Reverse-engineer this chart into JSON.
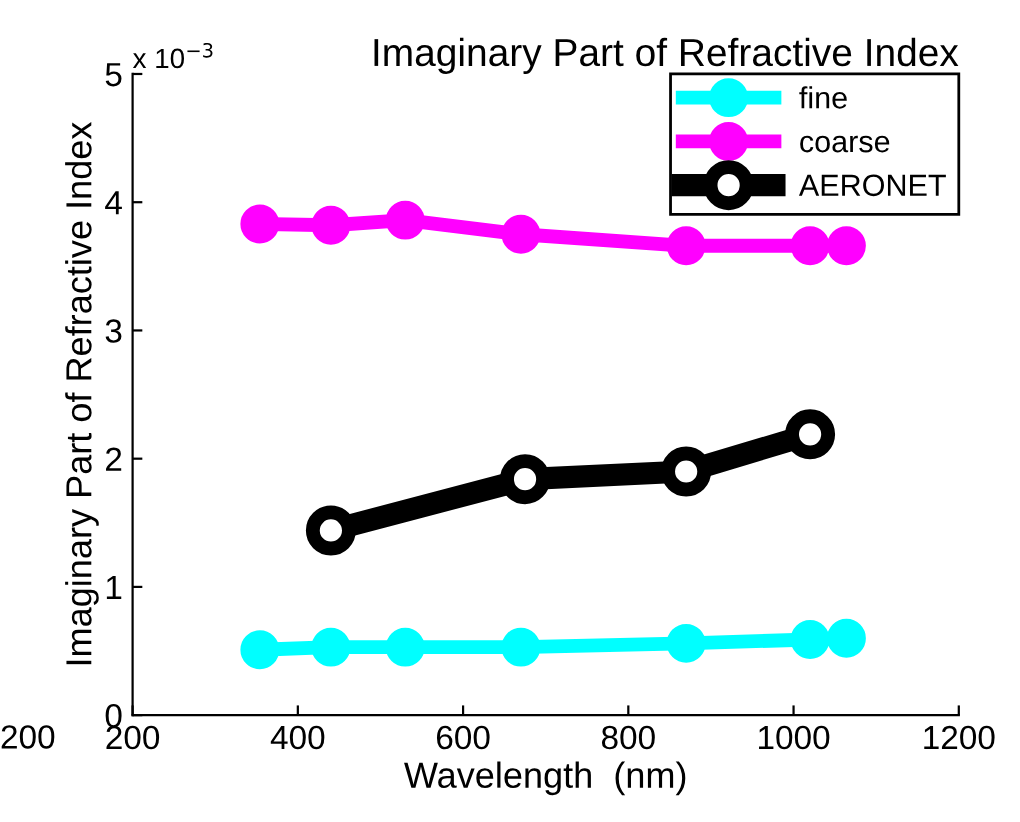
{
  "chart_data": {
    "type": "line",
    "title": "Imaginary Part of Refractive Index",
    "xlabel": "Wavelength  (nm)",
    "ylabel": "Imaginary Part of Refractive Index",
    "annotations": [
      "x 10$^{−3}$",
      "200"
    ],
    "x": [
      354,
      440,
      530,
      670,
      870,
      1020,
      1064
    ],
    "series": [
      {
        "name": "fine",
        "color": "#00ffff",
        "values": [
          0.51,
          0.53,
          0.53,
          0.53,
          0.56,
          0.59,
          0.6
        ]
      },
      {
        "name": "coarse",
        "color": "#ff00ff",
        "values": [
          3.83,
          3.82,
          3.86,
          3.75,
          3.66,
          3.66,
          3.66
        ]
      },
      {
        "name": "AERONET",
        "color": "#000000",
        "x": [
          440,
          675,
          870,
          1020
        ],
        "values": [
          1.44,
          1.84,
          1.9,
          2.19
        ]
      }
    ],
    "xlim": [
      200,
      1200
    ],
    "xticks": [
      200,
      400,
      600,
      800,
      1000,
      1200
    ],
    "ylim": [
      0,
      5
    ],
    "yticks": [
      0,
      1,
      2,
      3,
      4,
      5
    ],
    "legend": "top right",
    "marker": "circle",
    "line_style": "solid",
    "grid": false
  }
}
